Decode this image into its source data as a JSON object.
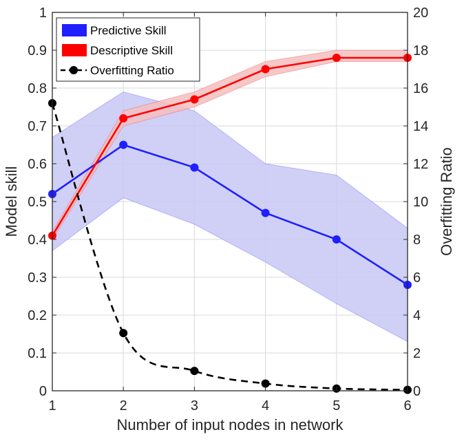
{
  "chart_data": {
    "type": "line",
    "xlabel": "Number of input nodes in network",
    "ylabel_left": "Model skill",
    "ylabel_right": "Overfitting Ratio",
    "x": [
      1,
      2,
      3,
      4,
      5,
      6
    ],
    "xlim": [
      1,
      6
    ],
    "ylim_left": [
      0,
      1
    ],
    "ylim_right": [
      0,
      20
    ],
    "x_ticks": [
      "1",
      "2",
      "3",
      "4",
      "5",
      "6"
    ],
    "y_left_ticks": [
      "0",
      "0.1",
      "0.2",
      "0.3",
      "0.4",
      "0.5",
      "0.6",
      "0.7",
      "0.8",
      "0.9",
      "1"
    ],
    "y_right_ticks": [
      "0",
      "2",
      "4",
      "6",
      "8",
      "10",
      "12",
      "14",
      "16",
      "18",
      "20"
    ],
    "grid": true,
    "legend_position": "top-left",
    "series": [
      {
        "name": "Predictive Skill",
        "axis": "left",
        "color": "#1f1fff",
        "band_color": "#c8c8f5",
        "values": [
          0.52,
          0.65,
          0.59,
          0.47,
          0.4,
          0.28
        ],
        "lower": [
          0.37,
          0.51,
          0.44,
          0.34,
          0.23,
          0.13
        ],
        "upper": [
          0.67,
          0.79,
          0.74,
          0.6,
          0.57,
          0.43
        ]
      },
      {
        "name": "Descriptive Skill",
        "axis": "left",
        "color": "#ff0000",
        "band_color": "#f5c0c0",
        "values": [
          0.41,
          0.72,
          0.77,
          0.85,
          0.88,
          0.88
        ],
        "lower": [
          0.4,
          0.7,
          0.75,
          0.83,
          0.87,
          0.87
        ],
        "upper": [
          0.42,
          0.74,
          0.79,
          0.87,
          0.9,
          0.9
        ]
      },
      {
        "name": "Overfitting Ratio",
        "axis": "right",
        "color": "#000000",
        "style": "dashed",
        "values": [
          15.2,
          3.05,
          1.05,
          0.38,
          0.12,
          0.05
        ]
      }
    ]
  }
}
